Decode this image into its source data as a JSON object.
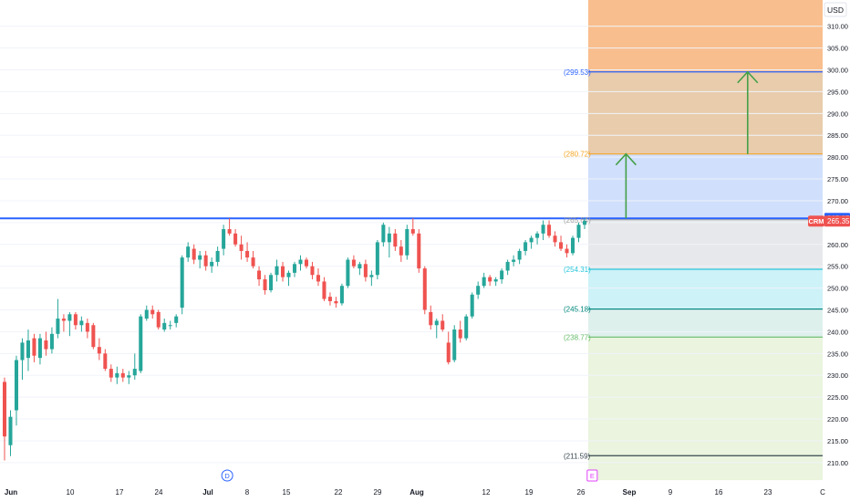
{
  "currency": "USD",
  "ticker": "CRM",
  "colors": {
    "up": "#26a69a",
    "down": "#ef5350",
    "blue": "#2962ff",
    "orange": "#f5a623",
    "arrow": "#43a047",
    "target_top": "#f7a35c",
    "level_254": "#26c6da",
    "level_245": "#00897b",
    "level_238": "#66bb6a",
    "bottom_line": "#37474f"
  },
  "chart_data": {
    "type": "candlestick",
    "ylim": [
      206,
      316
    ],
    "y_ticks": [
      "210.00",
      "215.00",
      "220.00",
      "225.00",
      "230.00",
      "235.00",
      "240.00",
      "245.00",
      "250.00",
      "255.00",
      "260.00",
      "265.00",
      "270.00",
      "275.00",
      "280.00",
      "285.00",
      "290.00",
      "295.00",
      "300.00",
      "305.00",
      "310.00"
    ],
    "x_ticks": [
      "Jun",
      "10",
      "17",
      "24",
      "Jul",
      "8",
      "15",
      "22",
      "29",
      "Aug",
      "12",
      "19",
      "26",
      "Sep",
      "9",
      "16",
      "23",
      "C"
    ],
    "x_tick_bold": [
      "Jun",
      "Jul",
      "Aug",
      "Sep"
    ],
    "price_badges": [
      {
        "label": "",
        "value": "265.97",
        "y": 265.97,
        "color": "#2962ff"
      },
      {
        "label": "CRM",
        "value": "265.35",
        "y": 265.35,
        "color": "#ef5350"
      }
    ],
    "horizontal_lines": [
      {
        "y": 265.97,
        "color": "#2962ff",
        "width": 2,
        "full": true
      },
      {
        "y": 299.53,
        "label": "(299.53)",
        "color": "#2962ff",
        "width": 1.2
      },
      {
        "y": 280.72,
        "label": "(280.72)",
        "color": "#f5a623",
        "width": 1.2
      },
      {
        "y": 265.64,
        "label": "(265.64)",
        "color": "#9e9e9e",
        "width": 1
      },
      {
        "y": 254.31,
        "label": "(254.31)",
        "color": "#26c6da",
        "width": 1.2
      },
      {
        "y": 245.18,
        "label": "(245.18)",
        "color": "#00897b",
        "width": 1.2
      },
      {
        "y": 238.77,
        "label": "(238.77)",
        "color": "#66bb6a",
        "width": 1.2
      },
      {
        "y": 211.59,
        "label": "(211.59)",
        "color": "#37474f",
        "width": 1.2
      }
    ],
    "zones": [
      {
        "from": 299.53,
        "to": 316,
        "color": "#f7a35c",
        "opacity": 0.7
      },
      {
        "from": 280.72,
        "to": 299.53,
        "color": "#d6a268",
        "opacity": 0.55
      },
      {
        "from": 265.64,
        "to": 280.72,
        "color": "#bcd2fb",
        "opacity": 0.7
      },
      {
        "from": 254.31,
        "to": 265.64,
        "color": "#d7d9de",
        "opacity": 0.6
      },
      {
        "from": 245.18,
        "to": 254.31,
        "color": "#b2ebf2",
        "opacity": 0.65
      },
      {
        "from": 238.77,
        "to": 245.18,
        "color": "#c8e6df",
        "opacity": 0.6
      },
      {
        "from": 206,
        "to": 238.77,
        "color": "#dcedc8",
        "opacity": 0.6
      }
    ],
    "arrows": [
      {
        "x": "Sep 2",
        "from": 265.97,
        "to": 280.72
      },
      {
        "x": "Sep 20",
        "from": 280.72,
        "to": 299.53
      }
    ],
    "event_markers": [
      {
        "label": "D",
        "x": "Jul 5",
        "color": "#2962ff",
        "shape": "circle"
      },
      {
        "label": "E",
        "x": "Aug 28",
        "color": "#e040fb",
        "shape": "square"
      }
    ],
    "candles": [
      {
        "d": "May 28",
        "o": 228.5,
        "h": 229.5,
        "l": 210.5,
        "c": 216.0
      },
      {
        "d": "May 29",
        "o": 214.0,
        "h": 222.0,
        "l": 211.5,
        "c": 220.5
      },
      {
        "d": "May 30",
        "o": 222.0,
        "h": 234.5,
        "l": 218.5,
        "c": 233.5
      },
      {
        "d": "May 31",
        "o": 233.5,
        "h": 238.5,
        "l": 229.0,
        "c": 237.5
      },
      {
        "d": "Jun 3",
        "o": 234.0,
        "h": 240.5,
        "l": 231.0,
        "c": 238.0
      },
      {
        "d": "Jun 4",
        "o": 238.5,
        "h": 239.5,
        "l": 233.0,
        "c": 234.5
      },
      {
        "d": "Jun 5",
        "o": 234.0,
        "h": 239.5,
        "l": 232.5,
        "c": 238.5
      },
      {
        "d": "Jun 6",
        "o": 238.0,
        "h": 240.0,
        "l": 234.5,
        "c": 236.0
      },
      {
        "d": "Jun 7",
        "o": 236.0,
        "h": 241.0,
        "l": 235.0,
        "c": 239.5
      },
      {
        "d": "Jun 10",
        "o": 239.5,
        "h": 247.5,
        "l": 238.5,
        "c": 243.0
      },
      {
        "d": "Jun 11",
        "o": 243.0,
        "h": 244.0,
        "l": 240.0,
        "c": 242.5
      },
      {
        "d": "Jun 12",
        "o": 242.5,
        "h": 244.5,
        "l": 239.0,
        "c": 244.0
      },
      {
        "d": "Jun 13",
        "o": 244.0,
        "h": 244.5,
        "l": 240.5,
        "c": 241.5
      },
      {
        "d": "Jun 14",
        "o": 241.5,
        "h": 243.5,
        "l": 240.0,
        "c": 242.5
      },
      {
        "d": "Jun 17",
        "o": 242.0,
        "h": 243.0,
        "l": 238.5,
        "c": 240.0
      },
      {
        "d": "Jun 18",
        "o": 241.5,
        "h": 242.0,
        "l": 236.0,
        "c": 236.5
      },
      {
        "d": "Jun 19",
        "o": 236.5,
        "h": 238.5,
        "l": 233.5,
        "c": 235.0
      },
      {
        "d": "Jun 20",
        "o": 235.0,
        "h": 236.0,
        "l": 231.0,
        "c": 231.5
      },
      {
        "d": "Jun 21",
        "o": 231.5,
        "h": 232.5,
        "l": 228.5,
        "c": 229.5
      },
      {
        "d": "Jun 24",
        "o": 229.5,
        "h": 232.0,
        "l": 228.0,
        "c": 230.5
      },
      {
        "d": "Jun 25",
        "o": 230.5,
        "h": 231.5,
        "l": 228.5,
        "c": 229.5
      },
      {
        "d": "Jun 26",
        "o": 229.5,
        "h": 231.0,
        "l": 228.0,
        "c": 230.0
      },
      {
        "d": "Jun 27",
        "o": 230.0,
        "h": 235.0,
        "l": 229.0,
        "c": 231.5
      },
      {
        "d": "Jun 28",
        "o": 231.0,
        "h": 244.0,
        "l": 230.5,
        "c": 243.5
      },
      {
        "d": "Jul 1",
        "o": 243.0,
        "h": 246.0,
        "l": 242.5,
        "c": 245.0
      },
      {
        "d": "Jul 2",
        "o": 245.0,
        "h": 246.0,
        "l": 243.0,
        "c": 244.0
      },
      {
        "d": "Jul 3",
        "o": 244.5,
        "h": 245.0,
        "l": 240.5,
        "c": 241.0
      },
      {
        "d": "Jul 5",
        "o": 240.5,
        "h": 243.0,
        "l": 240.0,
        "c": 242.0
      },
      {
        "d": "Jul 8",
        "o": 241.5,
        "h": 242.5,
        "l": 240.5,
        "c": 241.5
      },
      {
        "d": "Jul 9",
        "o": 242.0,
        "h": 244.0,
        "l": 241.0,
        "c": 243.5
      },
      {
        "d": "Jul 10",
        "o": 245.5,
        "h": 257.5,
        "l": 244.0,
        "c": 257.0
      },
      {
        "d": "Jul 11",
        "o": 257.0,
        "h": 260.5,
        "l": 256.0,
        "c": 259.5
      },
      {
        "d": "Jul 12",
        "o": 259.0,
        "h": 260.0,
        "l": 255.5,
        "c": 256.5
      },
      {
        "d": "Jul 15",
        "o": 256.5,
        "h": 258.5,
        "l": 254.5,
        "c": 257.5
      },
      {
        "d": "Jul 16",
        "o": 257.5,
        "h": 258.5,
        "l": 254.0,
        "c": 255.0
      },
      {
        "d": "Jul 17",
        "o": 255.0,
        "h": 257.0,
        "l": 253.5,
        "c": 256.0
      },
      {
        "d": "Jul 18",
        "o": 256.0,
        "h": 259.5,
        "l": 255.0,
        "c": 258.5
      },
      {
        "d": "Jul 19",
        "o": 259.0,
        "h": 264.5,
        "l": 257.5,
        "c": 263.5
      },
      {
        "d": "Jul 22",
        "o": 263.5,
        "h": 266.0,
        "l": 262.0,
        "c": 262.5
      },
      {
        "d": "Jul 23",
        "o": 262.5,
        "h": 263.5,
        "l": 259.5,
        "c": 260.0
      },
      {
        "d": "Jul 24",
        "o": 260.0,
        "h": 262.0,
        "l": 256.5,
        "c": 258.5
      },
      {
        "d": "Jul 25",
        "o": 258.5,
        "h": 260.5,
        "l": 256.0,
        "c": 257.0
      },
      {
        "d": "Jul 26",
        "o": 257.0,
        "h": 258.5,
        "l": 254.5,
        "c": 255.0
      },
      {
        "d": "Jul 29",
        "o": 254.0,
        "h": 255.0,
        "l": 250.5,
        "c": 252.0
      },
      {
        "d": "Jul 30",
        "o": 252.0,
        "h": 253.0,
        "l": 248.5,
        "c": 249.5
      },
      {
        "d": "Jul 31",
        "o": 249.5,
        "h": 253.5,
        "l": 249.0,
        "c": 253.0
      },
      {
        "d": "Aug 1",
        "o": 253.0,
        "h": 256.5,
        "l": 251.5,
        "c": 255.0
      },
      {
        "d": "Aug 2",
        "o": 255.0,
        "h": 256.0,
        "l": 251.5,
        "c": 252.5
      },
      {
        "d": "Aug 5",
        "o": 252.5,
        "h": 254.0,
        "l": 250.5,
        "c": 253.5
      },
      {
        "d": "Aug 6",
        "o": 253.5,
        "h": 256.0,
        "l": 252.5,
        "c": 255.5
      },
      {
        "d": "Aug 7",
        "o": 255.5,
        "h": 257.5,
        "l": 254.0,
        "c": 256.5
      },
      {
        "d": "Aug 8",
        "o": 256.5,
        "h": 257.0,
        "l": 254.5,
        "c": 255.0
      },
      {
        "d": "Aug 9",
        "o": 255.0,
        "h": 256.0,
        "l": 252.0,
        "c": 253.0
      },
      {
        "d": "Aug 12",
        "o": 253.0,
        "h": 254.5,
        "l": 250.5,
        "c": 251.5
      },
      {
        "d": "Aug 13",
        "o": 251.5,
        "h": 252.5,
        "l": 247.0,
        "c": 247.5
      },
      {
        "d": "Aug 14",
        "o": 248.0,
        "h": 249.0,
        "l": 246.0,
        "c": 247.0
      },
      {
        "d": "Aug 15",
        "o": 247.0,
        "h": 248.0,
        "l": 245.5,
        "c": 246.5
      },
      {
        "d": "Aug 16",
        "o": 246.5,
        "h": 251.0,
        "l": 246.0,
        "c": 250.5
      },
      {
        "d": "Aug 19",
        "o": 250.5,
        "h": 257.0,
        "l": 250.0,
        "c": 256.5
      },
      {
        "d": "Aug 20",
        "o": 256.5,
        "h": 257.5,
        "l": 254.5,
        "c": 255.0
      },
      {
        "d": "Aug 21",
        "o": 254.5,
        "h": 256.0,
        "l": 253.0,
        "c": 255.5
      },
      {
        "d": "Aug 22",
        "o": 255.5,
        "h": 256.5,
        "l": 251.5,
        "c": 252.5
      },
      {
        "d": "Aug 23",
        "o": 252.5,
        "h": 254.0,
        "l": 250.5,
        "c": 253.0
      },
      {
        "d": "Aug 26",
        "o": 253.0,
        "h": 261.0,
        "l": 252.0,
        "c": 260.5
      },
      {
        "d": "Aug 27",
        "o": 260.5,
        "h": 265.0,
        "l": 259.5,
        "c": 264.5
      },
      {
        "d": "Aug 28",
        "o": 260.5,
        "h": 264.0,
        "l": 257.0,
        "c": 262.5
      },
      {
        "d": "Aug 29",
        "o": 262.5,
        "h": 263.5,
        "l": 258.5,
        "c": 259.5
      },
      {
        "d": "Aug 30",
        "o": 259.5,
        "h": 261.0,
        "l": 256.0,
        "c": 257.5
      },
      {
        "d": "Sep 3",
        "o": 257.5,
        "h": 264.5,
        "l": 256.5,
        "c": 263.5
      },
      {
        "d": "Sep 4",
        "o": 263.5,
        "h": 266.0,
        "l": 262.0,
        "c": 262.5
      },
      {
        "d": "Sep 5",
        "o": 262.5,
        "h": 263.5,
        "l": 253.5,
        "c": 254.5
      },
      {
        "d": "Sep 6",
        "o": 254.5,
        "h": 255.0,
        "l": 244.0,
        "c": 245.0
      },
      {
        "d": "Sep 9",
        "o": 244.5,
        "h": 246.0,
        "l": 240.5,
        "c": 241.5
      },
      {
        "d": "Sep 10",
        "o": 241.5,
        "h": 243.0,
        "l": 238.5,
        "c": 242.5
      },
      {
        "d": "Sep 11",
        "o": 242.5,
        "h": 244.0,
        "l": 240.0,
        "c": 240.5
      },
      {
        "d": "Sep 12",
        "o": 237.5,
        "h": 240.0,
        "l": 232.5,
        "c": 233.0
      },
      {
        "d": "Sep 13",
        "o": 233.5,
        "h": 241.5,
        "l": 233.0,
        "c": 240.5
      },
      {
        "d": "Sep 16",
        "o": 240.5,
        "h": 242.5,
        "l": 237.5,
        "c": 238.5
      },
      {
        "d": "Sep 17",
        "o": 238.5,
        "h": 244.0,
        "l": 238.0,
        "c": 243.5
      },
      {
        "d": "Sep 18",
        "o": 243.5,
        "h": 249.0,
        "l": 243.0,
        "c": 248.5
      },
      {
        "d": "Sep 19",
        "o": 248.5,
        "h": 251.5,
        "l": 247.5,
        "c": 250.5
      },
      {
        "d": "Sep 20",
        "o": 250.5,
        "h": 253.5,
        "l": 250.0,
        "c": 252.5
      },
      {
        "d": "Sep 23",
        "o": 252.5,
        "h": 253.0,
        "l": 250.5,
        "c": 251.5
      },
      {
        "d": "Sep 24",
        "o": 251.5,
        "h": 252.5,
        "l": 250.5,
        "c": 252.0
      },
      {
        "d": "Sep 25",
        "o": 252.0,
        "h": 254.5,
        "l": 251.0,
        "c": 254.0
      },
      {
        "d": "Sep 26",
        "o": 254.0,
        "h": 256.5,
        "l": 253.0,
        "c": 256.0
      },
      {
        "d": "Sep 27",
        "o": 256.0,
        "h": 257.5,
        "l": 255.0,
        "c": 256.5
      },
      {
        "d": "Sep 30",
        "o": 256.5,
        "h": 259.0,
        "l": 255.5,
        "c": 258.5
      },
      {
        "d": "Oct 1",
        "o": 258.5,
        "h": 261.0,
        "l": 257.5,
        "c": 260.5
      },
      {
        "d": "Oct 2",
        "o": 260.5,
        "h": 262.0,
        "l": 259.0,
        "c": 261.5
      },
      {
        "d": "Oct 3",
        "o": 261.5,
        "h": 263.0,
        "l": 260.0,
        "c": 262.5
      },
      {
        "d": "Oct 4",
        "o": 262.5,
        "h": 265.5,
        "l": 261.0,
        "c": 264.5
      },
      {
        "d": "Oct 7",
        "o": 264.5,
        "h": 265.5,
        "l": 261.5,
        "c": 262.0
      },
      {
        "d": "Oct 8",
        "o": 262.0,
        "h": 263.0,
        "l": 259.5,
        "c": 260.5
      },
      {
        "d": "Oct 9",
        "o": 260.5,
        "h": 262.0,
        "l": 258.5,
        "c": 259.0
      },
      {
        "d": "Oct 10",
        "o": 259.0,
        "h": 260.0,
        "l": 257.0,
        "c": 258.0
      },
      {
        "d": "Oct 11",
        "o": 258.0,
        "h": 262.0,
        "l": 257.5,
        "c": 261.5
      },
      {
        "d": "Oct 14",
        "o": 261.5,
        "h": 265.0,
        "l": 260.5,
        "c": 264.5
      },
      {
        "d": "Oct 15",
        "o": 264.5,
        "h": 266.0,
        "l": 263.5,
        "c": 265.35
      }
    ]
  }
}
